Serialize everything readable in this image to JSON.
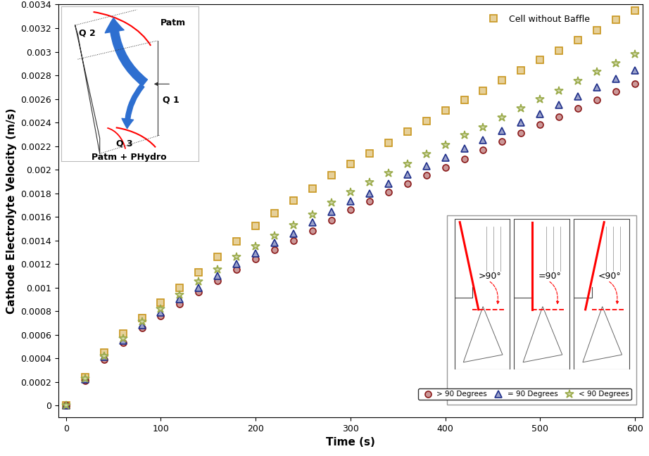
{
  "chart_data": {
    "type": "scatter",
    "x_label": "Time (s)",
    "y_label": "Cathode Electrolyte Velocity (m/s)",
    "x": [
      0,
      20,
      40,
      60,
      80,
      100,
      120,
      140,
      160,
      180,
      200,
      220,
      240,
      260,
      280,
      300,
      320,
      340,
      360,
      380,
      400,
      420,
      440,
      460,
      480,
      500,
      520,
      540,
      560,
      580,
      600
    ],
    "series": [
      {
        "name": "Cell without Baffle",
        "color": "#c8961e",
        "marker": "square",
        "values": [
          0,
          0.00024,
          0.00045,
          0.00061,
          0.00074,
          0.00087,
          0.001,
          0.00113,
          0.00126,
          0.00139,
          0.00152,
          0.00163,
          0.00174,
          0.00184,
          0.00195,
          0.00205,
          0.00214,
          0.00223,
          0.00232,
          0.00241,
          0.0025,
          0.00259,
          0.00267,
          0.00276,
          0.00284,
          0.00293,
          0.00301,
          0.0031,
          0.00318,
          0.00327,
          0.00335
        ]
      },
      {
        "name": "> 90 Degrees",
        "color": "#8b1a1a",
        "marker": "circle",
        "values": [
          0,
          0.00021,
          0.00039,
          0.00053,
          0.00066,
          0.00076,
          0.00086,
          0.00096,
          0.00106,
          0.00115,
          0.00124,
          0.00132,
          0.0014,
          0.00148,
          0.00157,
          0.00166,
          0.00173,
          0.00181,
          0.00188,
          0.00195,
          0.00202,
          0.00209,
          0.00217,
          0.00224,
          0.00231,
          0.00238,
          0.00245,
          0.00252,
          0.00259,
          0.00266,
          0.00273
        ]
      },
      {
        "name": "= 90 Degrees",
        "color": "#1f2f8a",
        "marker": "triangle",
        "values": [
          0,
          0.00022,
          0.00041,
          0.00055,
          0.00068,
          0.00079,
          0.0009,
          0.001,
          0.0011,
          0.0012,
          0.00129,
          0.00138,
          0.00146,
          0.00155,
          0.00164,
          0.00173,
          0.0018,
          0.00188,
          0.00196,
          0.00203,
          0.0021,
          0.00218,
          0.00225,
          0.00233,
          0.0024,
          0.00247,
          0.00255,
          0.00262,
          0.0027,
          0.00277,
          0.00284
        ]
      },
      {
        "name": "< 90 Degrees",
        "color": "#9aaa4a",
        "marker": "star",
        "values": [
          0,
          0.00023,
          0.00042,
          0.00057,
          0.00071,
          0.00082,
          0.00094,
          0.00105,
          0.00115,
          0.00126,
          0.00135,
          0.00144,
          0.00153,
          0.00162,
          0.00172,
          0.00181,
          0.00189,
          0.00197,
          0.00205,
          0.00213,
          0.00221,
          0.00229,
          0.00236,
          0.00244,
          0.00252,
          0.0026,
          0.00267,
          0.00275,
          0.00283,
          0.0029,
          0.00298
        ]
      }
    ],
    "xlim": [
      -8,
      608
    ],
    "xticks": [
      0,
      100,
      200,
      300,
      400,
      500,
      600
    ],
    "ylim": [
      -0.0001,
      0.0034
    ],
    "yticks": [
      0,
      0.0002,
      0.0004,
      0.0006,
      0.0008,
      0.001,
      0.0012,
      0.0014,
      0.0016,
      0.0018,
      0.002,
      0.0022,
      0.0024,
      0.0026,
      0.0028,
      0.003,
      0.0032,
      0.0034
    ],
    "grid": false,
    "legend": "upper center",
    "annotations": {
      "schematic": {
        "q2": "Q 2",
        "q1": "Q 1",
        "q3": "Q 3",
        "top": "Patm",
        "bottom": "Patm + PHydro"
      },
      "angles": [
        ">90°",
        "=90°",
        "<90°"
      ]
    }
  }
}
